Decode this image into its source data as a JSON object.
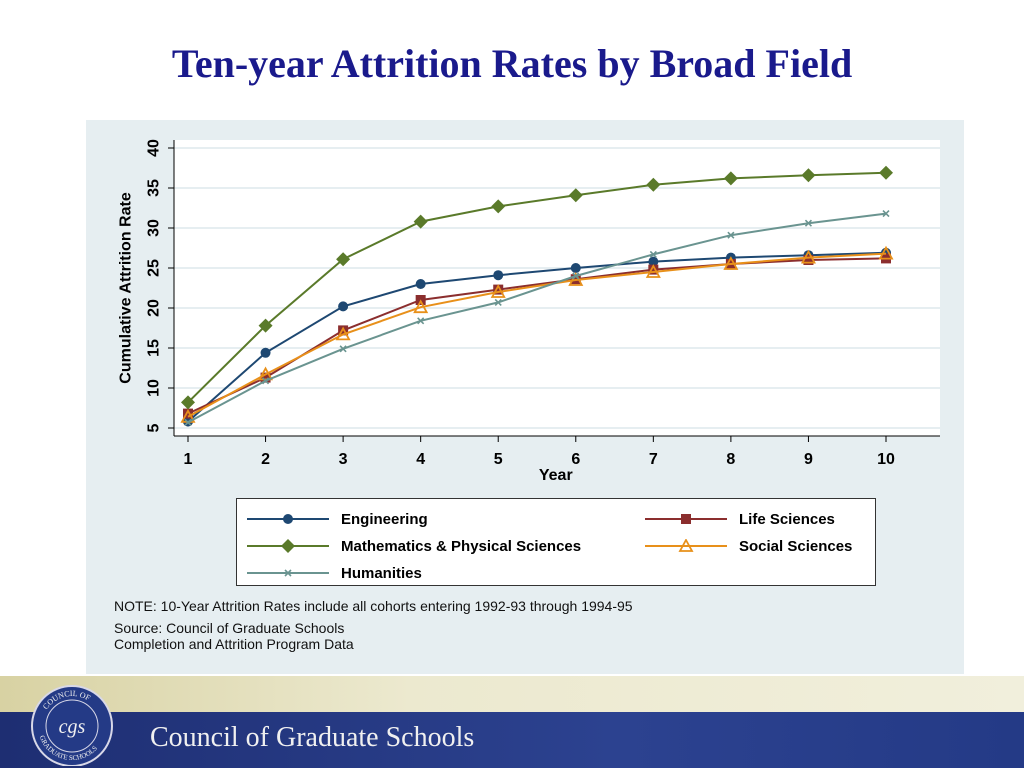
{
  "slide": {
    "title": "Ten-year Attrition Rates by Broad Field",
    "note": "NOTE: 10-Year Attrition Rates include all cohorts entering 1992-93 through 1994-95",
    "source_line1": "Source: Council of Graduate Schools",
    "source_line2": "Completion and Attrition Program Data"
  },
  "footer": {
    "organization": "Council of Graduate Schools",
    "seal_text_top": "COUNCIL OF",
    "seal_text_bottom": "GRADUATE SCHOOLS",
    "seal_monogram": "cgs"
  },
  "chart_data": {
    "type": "line",
    "xlabel": "Year",
    "ylabel": "Cumulative Attrition Rate",
    "x": [
      1,
      2,
      3,
      4,
      5,
      6,
      7,
      8,
      9,
      10
    ],
    "xlim": [
      1,
      10
    ],
    "ylim": [
      5,
      40
    ],
    "yticks": [
      5,
      10,
      15,
      20,
      25,
      30,
      35,
      40
    ],
    "grid": true,
    "legend_position": "bottom",
    "series": [
      {
        "name": "Engineering",
        "color": "#1e4872",
        "marker": "circle",
        "values": [
          5.8,
          14.4,
          20.2,
          23.0,
          24.1,
          25.0,
          25.8,
          26.3,
          26.6,
          26.9
        ]
      },
      {
        "name": "Life Sciences",
        "color": "#8b2e2e",
        "marker": "square",
        "values": [
          6.8,
          11.3,
          17.2,
          21.0,
          22.3,
          23.6,
          24.8,
          25.5,
          26.0,
          26.2
        ]
      },
      {
        "name": "Mathematics & Physical Sciences",
        "color": "#5a7a2a",
        "marker": "diamond",
        "values": [
          8.2,
          17.8,
          26.1,
          30.8,
          32.7,
          34.1,
          35.4,
          36.2,
          36.6,
          36.9
        ]
      },
      {
        "name": "Social Sciences",
        "color": "#e8901a",
        "marker": "triangle",
        "values": [
          6.4,
          11.7,
          16.7,
          20.1,
          22.0,
          23.5,
          24.5,
          25.5,
          26.3,
          26.8
        ]
      },
      {
        "name": "Humanities",
        "color": "#6a9490",
        "marker": "x",
        "values": [
          5.7,
          10.9,
          14.9,
          18.4,
          20.7,
          24.0,
          26.7,
          29.1,
          30.6,
          31.8
        ]
      }
    ]
  }
}
